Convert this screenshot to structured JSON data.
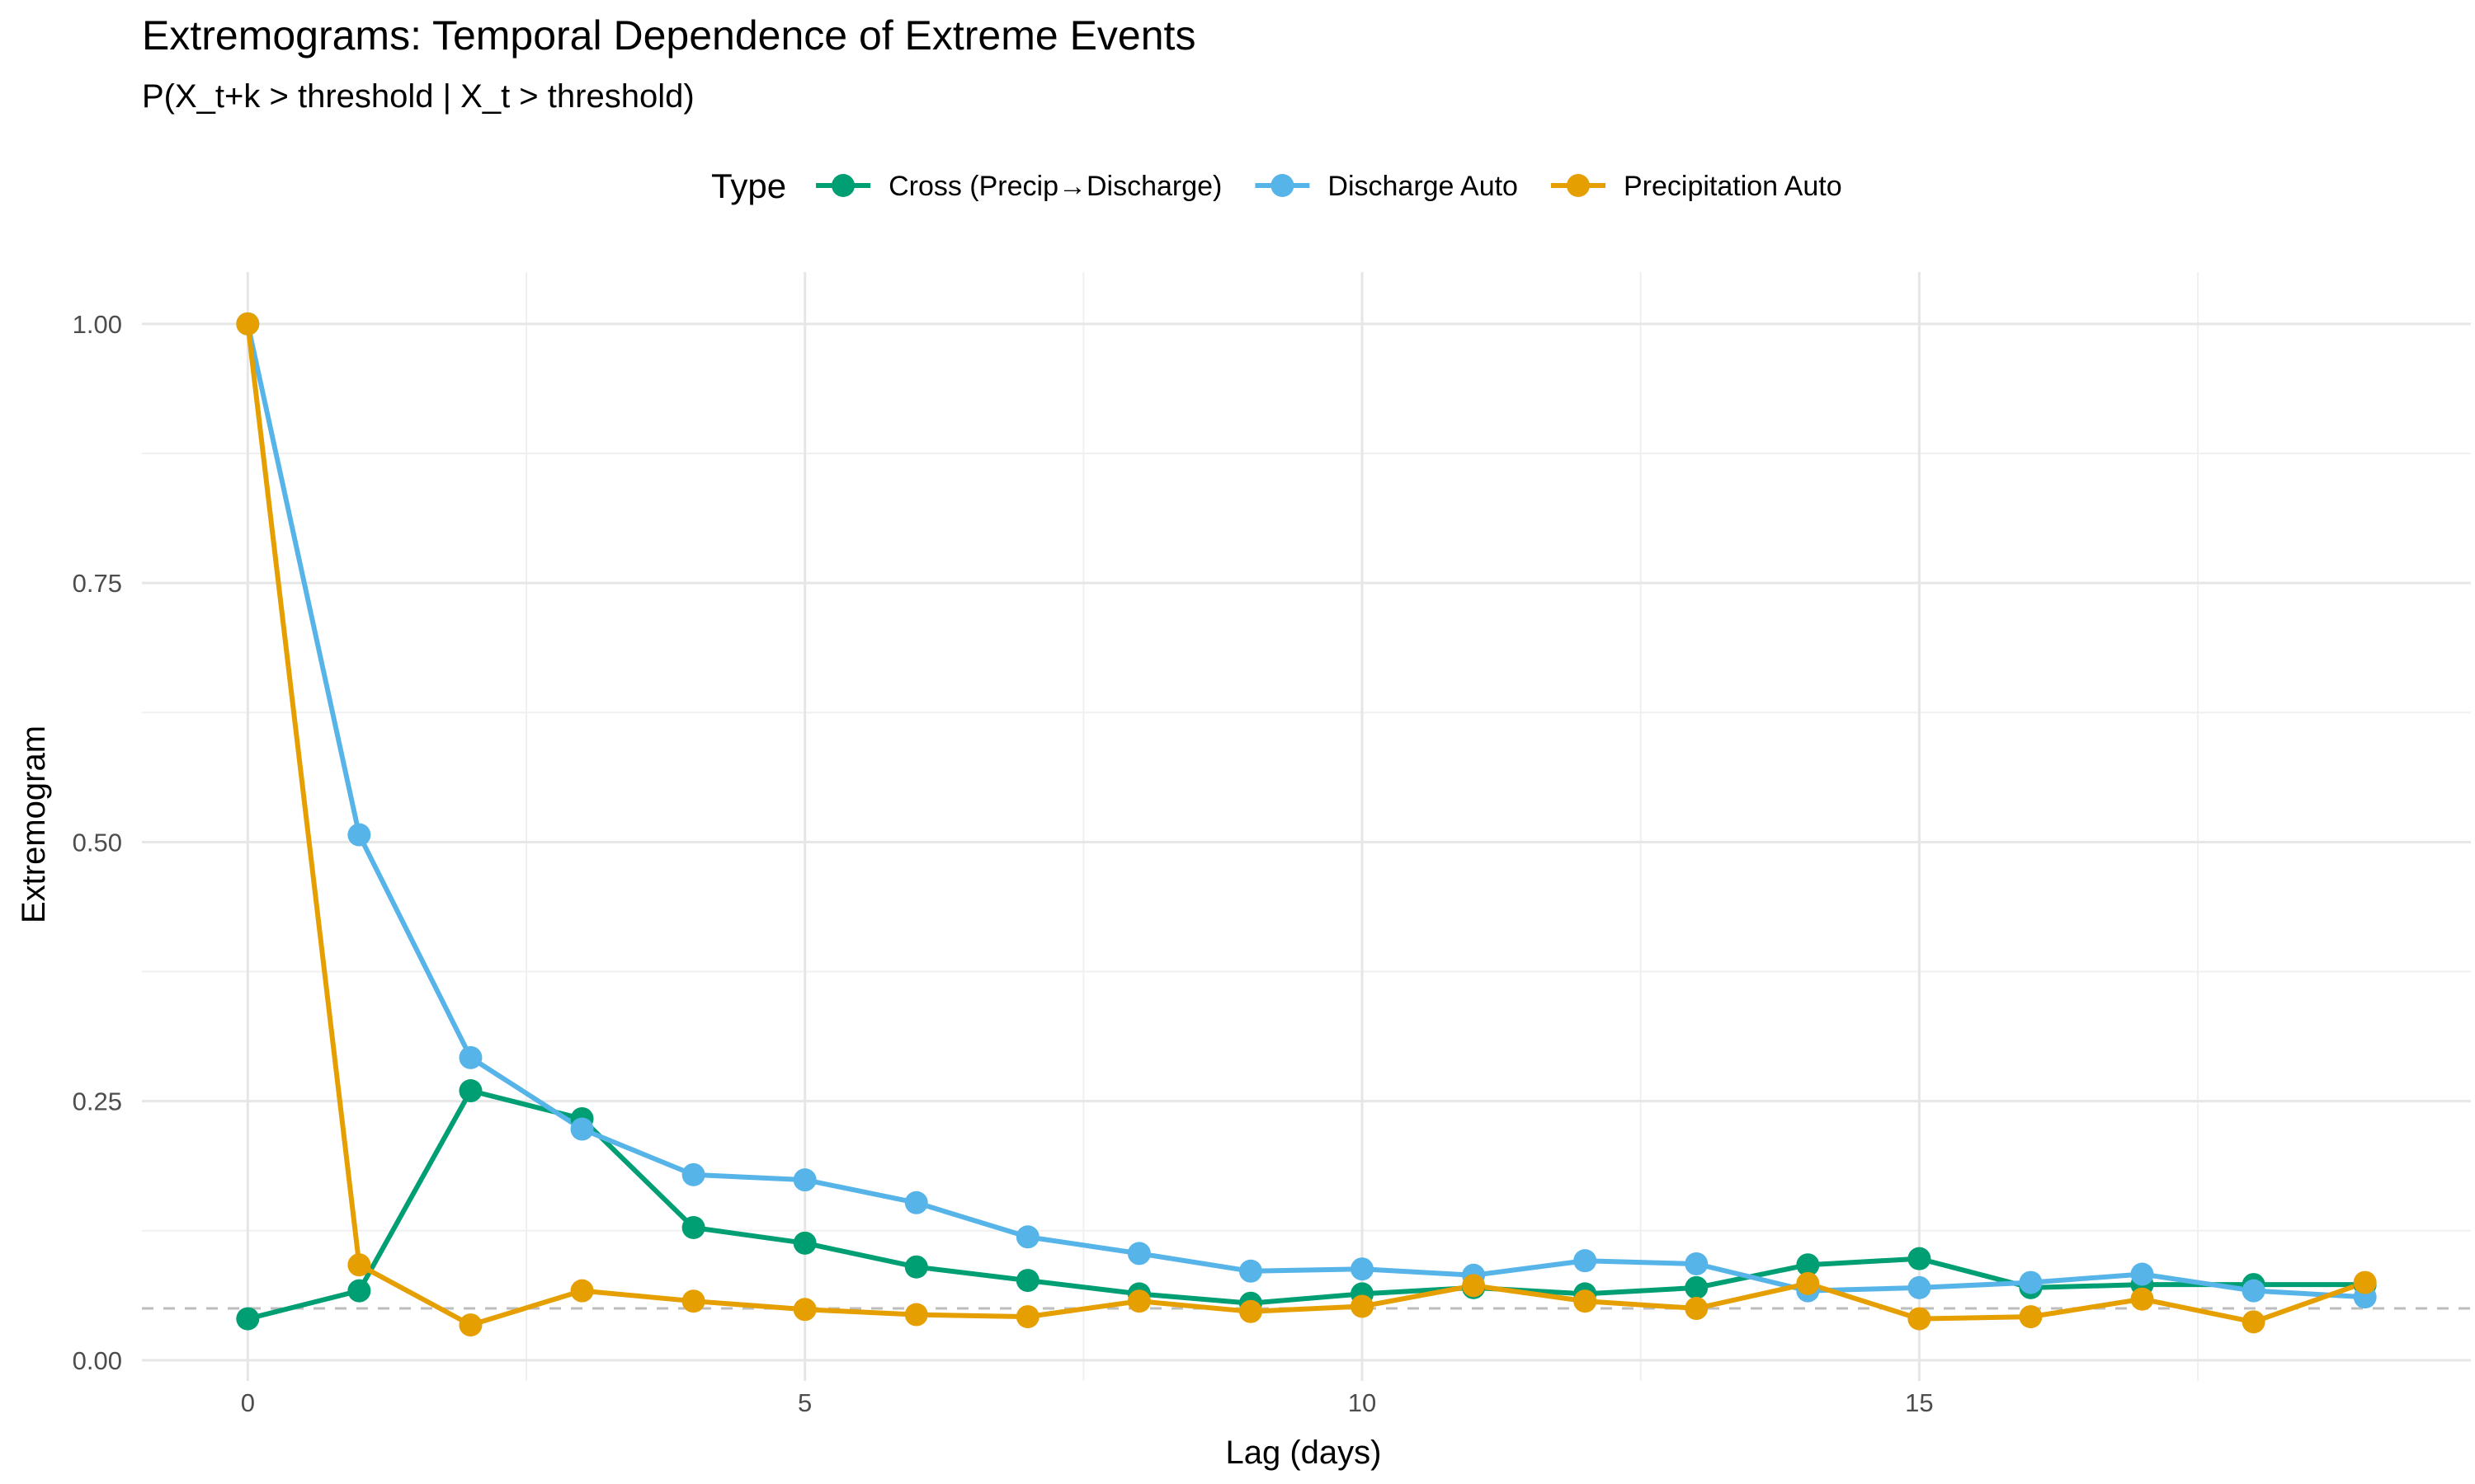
{
  "chart_data": {
    "type": "line",
    "title": "Extremograms: Temporal Dependence of Extreme Events",
    "subtitle": "P(X_t+k > threshold | X_t > threshold)",
    "xlabel": "Lag (days)",
    "ylabel": "Extremogram",
    "xlim": [
      -0.95,
      19.95
    ],
    "ylim": [
      -0.02,
      1.05
    ],
    "x_ticks": [
      0,
      5,
      10,
      15
    ],
    "x_tick_labels": [
      "0",
      "5",
      "10",
      "15"
    ],
    "y_ticks": [
      0.0,
      0.25,
      0.5,
      0.75,
      1.0
    ],
    "y_tick_labels": [
      "0.00",
      "0.25",
      "0.50",
      "0.75",
      "1.00"
    ],
    "grid": true,
    "legend": {
      "title": "Type",
      "position": "top"
    },
    "reference_line": {
      "y": 0.05,
      "style": "dashed",
      "color": "#bdbdbd"
    },
    "x": [
      0,
      1,
      2,
      3,
      4,
      5,
      6,
      7,
      8,
      9,
      10,
      11,
      12,
      13,
      14,
      15,
      16,
      17,
      18,
      19
    ],
    "series": [
      {
        "name": "Cross (Precip→Discharge)",
        "color": "#009E73",
        "values": [
          0.04,
          0.067,
          0.26,
          0.233,
          0.128,
          0.113,
          0.09,
          0.077,
          0.064,
          0.055,
          0.064,
          0.07,
          0.064,
          0.07,
          0.092,
          0.098,
          0.07,
          0.073,
          0.073,
          0.073
        ]
      },
      {
        "name": "Discharge Auto",
        "color": "#56B4E9",
        "values": [
          1.0,
          0.507,
          0.292,
          0.223,
          0.179,
          0.174,
          0.152,
          0.119,
          0.103,
          0.086,
          0.088,
          0.082,
          0.096,
          0.093,
          0.067,
          0.07,
          0.075,
          0.083,
          0.067,
          0.061
        ]
      },
      {
        "name": "Precipitation Auto",
        "color": "#E69F00",
        "values": [
          1.0,
          0.092,
          0.034,
          0.067,
          0.057,
          0.049,
          0.044,
          0.042,
          0.057,
          0.047,
          0.052,
          0.072,
          0.057,
          0.05,
          0.074,
          0.04,
          0.042,
          0.059,
          0.037,
          0.075
        ]
      }
    ]
  }
}
